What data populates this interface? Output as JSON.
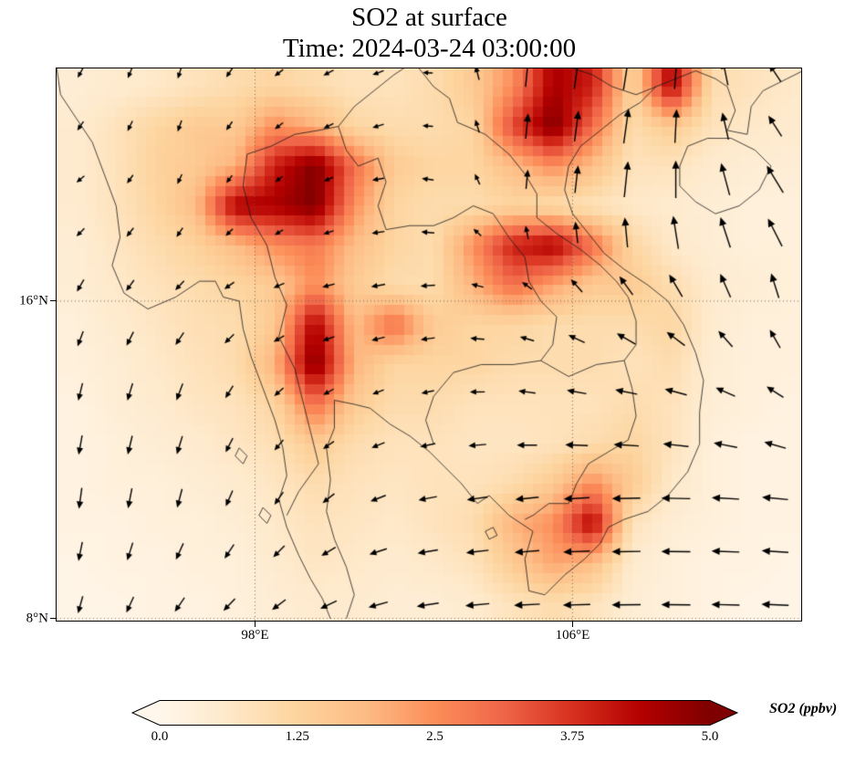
{
  "title": "SO2 at surface",
  "subtitle": "Time: 2024-03-24 03:00:00",
  "axes": {
    "extent": {
      "lon_min": 93.0,
      "lon_max": 111.76,
      "lat_min": 7.95,
      "lat_max": 21.86
    },
    "lat_ticks": [
      {
        "label": "16°N",
        "value": 16
      },
      {
        "label": "8°N",
        "value": 8
      }
    ],
    "lon_ticks": [
      {
        "label": "98°E",
        "value": 98
      },
      {
        "label": "106°E",
        "value": 106
      }
    ]
  },
  "colorbar": {
    "label": "SO2 (ppbv)",
    "min": 0,
    "max": 5,
    "ticks": [
      "0.0",
      "1.25",
      "2.5",
      "3.75",
      "5.0"
    ]
  },
  "chart_data": {
    "type": "heatmap",
    "overlay": "quiver",
    "variable": "SO2 surface concentration",
    "units": "ppbv",
    "time": "2024-03-24 03:00:00",
    "value_range": [
      0,
      5
    ],
    "colormap_stops": [
      [
        0.0,
        "#fff7ec"
      ],
      [
        0.125,
        "#fee8c8"
      ],
      [
        0.25,
        "#fdd49e"
      ],
      [
        0.375,
        "#fdbb84"
      ],
      [
        0.5,
        "#fc8d59"
      ],
      [
        0.625,
        "#ef6548"
      ],
      [
        0.75,
        "#d7301f"
      ],
      [
        0.875,
        "#b30000"
      ],
      [
        1.0,
        "#7f0000"
      ]
    ],
    "grid": {
      "lon_start": 93.5,
      "lon_step": 1.0,
      "lat_start": 21.4,
      "lat_step": -1.0,
      "values": [
        [
          0.4,
          0.5,
          0.6,
          0.8,
          1.0,
          1.2,
          1.0,
          0.8,
          0.8,
          1.0,
          1.5,
          2.5,
          4.5,
          4.0,
          1.2,
          4.5,
          1.0,
          0.8,
          0.6
        ],
        [
          0.5,
          0.8,
          1.2,
          1.5,
          1.5,
          2.5,
          2.0,
          1.2,
          1.0,
          1.0,
          1.2,
          3.5,
          5.0,
          3.0,
          1.0,
          1.5,
          0.8,
          0.6,
          0.5
        ],
        [
          0.5,
          0.8,
          1.3,
          1.5,
          2.0,
          4.0,
          5.0,
          3.0,
          1.5,
          1.2,
          1.2,
          1.8,
          2.5,
          1.8,
          0.8,
          0.8,
          0.5,
          0.4,
          0.4
        ],
        [
          0.5,
          0.8,
          1.2,
          1.8,
          4.5,
          4.5,
          5.0,
          2.5,
          1.2,
          1.0,
          1.0,
          1.2,
          1.0,
          0.8,
          0.6,
          0.5,
          0.4,
          0.3,
          0.3
        ],
        [
          0.4,
          0.7,
          1.0,
          1.3,
          1.8,
          2.5,
          2.8,
          1.8,
          1.2,
          1.0,
          2.5,
          4.0,
          4.5,
          3.0,
          1.2,
          0.6,
          0.4,
          0.3,
          0.3
        ],
        [
          0.4,
          0.6,
          0.8,
          1.0,
          1.2,
          1.5,
          2.5,
          1.5,
          1.0,
          1.0,
          2.0,
          3.0,
          2.2,
          1.5,
          1.5,
          1.0,
          0.5,
          0.4,
          0.3
        ],
        [
          0.3,
          0.5,
          0.7,
          0.9,
          1.0,
          1.5,
          4.5,
          1.8,
          3.0,
          1.5,
          1.2,
          1.2,
          1.0,
          1.0,
          1.0,
          1.2,
          0.5,
          0.3,
          0.3
        ],
        [
          0.3,
          0.4,
          0.6,
          0.8,
          1.0,
          2.0,
          5.0,
          2.0,
          1.2,
          1.2,
          1.2,
          1.0,
          1.0,
          1.0,
          0.8,
          1.0,
          0.4,
          0.3,
          0.3
        ],
        [
          0.2,
          0.4,
          0.5,
          0.7,
          0.8,
          1.2,
          3.0,
          1.5,
          1.0,
          1.0,
          0.8,
          0.8,
          0.8,
          0.8,
          1.0,
          0.8,
          0.4,
          0.3,
          0.2
        ],
        [
          0.2,
          0.3,
          0.4,
          0.5,
          0.7,
          0.9,
          1.5,
          1.0,
          0.8,
          0.8,
          0.7,
          0.7,
          0.8,
          1.0,
          1.2,
          0.8,
          0.3,
          0.2,
          0.2
        ],
        [
          0.2,
          0.3,
          0.3,
          0.4,
          0.5,
          0.7,
          1.0,
          0.8,
          0.7,
          0.8,
          0.8,
          1.0,
          1.5,
          2.5,
          1.5,
          0.6,
          0.3,
          0.2,
          0.2
        ],
        [
          0.2,
          0.2,
          0.3,
          0.3,
          0.4,
          0.6,
          0.8,
          0.7,
          0.6,
          0.8,
          1.0,
          2.0,
          2.5,
          4.5,
          0.8,
          0.4,
          0.3,
          0.2,
          0.2
        ],
        [
          0.1,
          0.2,
          0.2,
          0.3,
          0.3,
          0.5,
          0.7,
          0.6,
          0.5,
          0.6,
          0.8,
          1.5,
          2.2,
          1.8,
          0.5,
          0.3,
          0.2,
          0.2,
          0.1
        ],
        [
          0.1,
          0.1,
          0.2,
          0.2,
          0.3,
          0.4,
          0.5,
          0.5,
          0.4,
          0.4,
          0.5,
          0.8,
          1.0,
          0.8,
          0.4,
          0.3,
          0.2,
          0.1,
          0.1
        ]
      ]
    },
    "wind": {
      "lons": [
        93,
        96,
        99,
        102,
        105,
        108,
        111
      ],
      "lats": [
        21,
        18.5,
        16,
        13.5,
        11,
        8.5
      ],
      "u": [
        [
          -0.5,
          -0.3,
          -0.8,
          -1.0,
          0.3,
          0.5,
          -1.0
        ],
        [
          -0.8,
          -0.4,
          -0.6,
          -1.2,
          0.2,
          0.3,
          -1.5
        ],
        [
          -0.5,
          -0.8,
          -1.0,
          -1.3,
          -1.0,
          -1.5,
          -0.5
        ],
        [
          -0.3,
          -0.5,
          -0.8,
          -1.0,
          -1.5,
          -2.0,
          -1.5
        ],
        [
          -0.2,
          -0.4,
          -0.8,
          -1.5,
          -2.0,
          -2.5,
          -2.2
        ],
        [
          -0.3,
          -0.8,
          -1.2,
          -1.8,
          -2.2,
          -2.5,
          -2.3
        ]
      ],
      "v": [
        [
          -0.8,
          -1.0,
          -0.5,
          -0.3,
          2.5,
          3.0,
          1.5
        ],
        [
          -0.4,
          -0.8,
          -0.4,
          0.0,
          1.5,
          3.5,
          2.5
        ],
        [
          -1.2,
          -0.8,
          -0.3,
          -0.2,
          0.5,
          1.5,
          2.0
        ],
        [
          -1.5,
          -1.5,
          -0.6,
          -0.3,
          0.2,
          0.3,
          0.8
        ],
        [
          -1.8,
          -1.6,
          -1.0,
          -0.3,
          -0.2,
          0.0,
          0.2
        ],
        [
          -1.5,
          -1.2,
          -0.8,
          -0.3,
          -0.1,
          0.0,
          0.1
        ]
      ]
    },
    "map_outlines": [
      [
        [
          93.0,
          21.9
        ],
        [
          93.1,
          21.2
        ],
        [
          93.5,
          20.6
        ],
        [
          93.9,
          20.0
        ],
        [
          94.2,
          19.2
        ],
        [
          94.5,
          18.4
        ],
        [
          94.6,
          17.6
        ],
        [
          94.4,
          16.9
        ],
        [
          94.7,
          16.2
        ],
        [
          95.3,
          15.8
        ],
        [
          96.0,
          16.1
        ],
        [
          96.6,
          16.5
        ],
        [
          97.0,
          16.5
        ],
        [
          97.2,
          16.1
        ],
        [
          97.6,
          16.0
        ],
        [
          97.7,
          15.3
        ],
        [
          97.9,
          14.6
        ],
        [
          98.2,
          13.8
        ],
        [
          98.5,
          13.0
        ],
        [
          98.7,
          12.3
        ],
        [
          98.8,
          11.6
        ],
        [
          98.6,
          11.0
        ],
        [
          98.8,
          10.3
        ],
        [
          99.1,
          9.6
        ],
        [
          99.4,
          9.0
        ],
        [
          99.7,
          8.5
        ],
        [
          99.9,
          8.0
        ]
      ],
      [
        [
          100.3,
          8.0
        ],
        [
          100.5,
          8.6
        ],
        [
          100.3,
          9.3
        ],
        [
          100.0,
          10.0
        ],
        [
          99.8,
          10.7
        ],
        [
          99.9,
          11.5
        ],
        [
          99.8,
          12.3
        ],
        [
          100.0,
          12.8
        ],
        [
          100.0,
          13.5
        ],
        [
          100.5,
          13.4
        ],
        [
          100.9,
          13.3
        ],
        [
          101.4,
          12.9
        ],
        [
          101.9,
          12.6
        ],
        [
          102.4,
          12.2
        ],
        [
          102.9,
          11.7
        ],
        [
          103.2,
          11.4
        ],
        [
          103.6,
          10.9
        ],
        [
          103.9,
          11.1
        ],
        [
          104.4,
          10.6
        ],
        [
          105.0,
          10.2
        ],
        [
          104.8,
          9.5
        ],
        [
          104.9,
          8.7
        ],
        [
          105.3,
          8.6
        ],
        [
          105.8,
          9.1
        ],
        [
          106.3,
          9.5
        ],
        [
          106.7,
          9.9
        ],
        [
          106.9,
          10.3
        ],
        [
          107.3,
          10.5
        ],
        [
          107.9,
          10.7
        ],
        [
          108.4,
          11.1
        ],
        [
          108.9,
          11.7
        ],
        [
          109.2,
          12.4
        ],
        [
          109.2,
          13.2
        ],
        [
          109.3,
          14.0
        ],
        [
          109.1,
          14.7
        ],
        [
          108.8,
          15.4
        ],
        [
          108.4,
          16.0
        ],
        [
          107.9,
          16.4
        ],
        [
          107.3,
          16.8
        ],
        [
          106.8,
          17.2
        ],
        [
          106.4,
          17.7
        ],
        [
          106.0,
          18.2
        ],
        [
          105.8,
          18.8
        ],
        [
          105.9,
          19.4
        ],
        [
          106.2,
          19.9
        ],
        [
          106.7,
          20.3
        ],
        [
          107.2,
          20.7
        ],
        [
          107.7,
          21.0
        ],
        [
          108.1,
          21.4
        ],
        [
          108.6,
          21.6
        ],
        [
          109.1,
          21.8
        ],
        [
          109.6,
          21.6
        ],
        [
          109.9,
          21.4
        ],
        [
          110.1,
          20.8
        ],
        [
          109.9,
          20.3
        ],
        [
          110.4,
          20.2
        ],
        [
          110.5,
          20.9
        ],
        [
          110.8,
          21.3
        ],
        [
          111.4,
          21.6
        ],
        [
          111.8,
          21.8
        ]
      ],
      [
        [
          108.7,
          19.4
        ],
        [
          108.9,
          19.9
        ],
        [
          109.4,
          20.1
        ],
        [
          110.0,
          20.1
        ],
        [
          110.6,
          19.8
        ],
        [
          111.0,
          19.4
        ],
        [
          110.7,
          18.8
        ],
        [
          110.2,
          18.4
        ],
        [
          109.6,
          18.2
        ],
        [
          109.1,
          18.5
        ],
        [
          108.7,
          18.9
        ],
        [
          108.7,
          19.4
        ]
      ],
      [
        [
          97.8,
          19.7
        ],
        [
          97.7,
          18.9
        ],
        [
          97.9,
          18.1
        ],
        [
          98.3,
          17.4
        ],
        [
          98.5,
          16.6
        ],
        [
          98.8,
          15.9
        ],
        [
          98.6,
          15.1
        ],
        [
          99.0,
          14.3
        ],
        [
          99.2,
          13.5
        ],
        [
          99.4,
          12.7
        ],
        [
          99.6,
          11.9
        ],
        [
          99.1,
          11.2
        ],
        [
          98.8,
          10.6
        ]
      ],
      [
        [
          97.8,
          19.7
        ],
        [
          98.4,
          19.9
        ],
        [
          99.0,
          20.2
        ],
        [
          99.6,
          20.3
        ],
        [
          100.1,
          20.4
        ],
        [
          100.3,
          19.8
        ],
        [
          100.6,
          19.4
        ],
        [
          101.1,
          19.6
        ],
        [
          101.3,
          19.0
        ],
        [
          101.1,
          18.4
        ],
        [
          101.3,
          17.8
        ],
        [
          101.9,
          17.9
        ],
        [
          102.5,
          17.9
        ],
        [
          103.0,
          18.1
        ],
        [
          103.5,
          18.4
        ],
        [
          104.0,
          18.2
        ],
        [
          104.4,
          17.6
        ],
        [
          104.8,
          17.1
        ],
        [
          104.9,
          16.5
        ],
        [
          105.2,
          16.0
        ],
        [
          105.6,
          15.6
        ],
        [
          105.5,
          14.9
        ],
        [
          105.2,
          14.5
        ],
        [
          104.5,
          14.4
        ],
        [
          103.7,
          14.4
        ],
        [
          103.0,
          14.2
        ],
        [
          102.5,
          13.6
        ],
        [
          102.3,
          13.0
        ],
        [
          102.5,
          12.4
        ]
      ],
      [
        [
          102.1,
          21.9
        ],
        [
          102.5,
          21.4
        ],
        [
          102.9,
          21.1
        ],
        [
          103.1,
          20.5
        ],
        [
          103.8,
          20.2
        ],
        [
          104.4,
          19.7
        ],
        [
          104.8,
          19.2
        ],
        [
          105.1,
          18.7
        ],
        [
          105.1,
          18.1
        ],
        [
          105.6,
          17.7
        ],
        [
          106.2,
          17.3
        ],
        [
          106.7,
          16.9
        ],
        [
          107.1,
          16.5
        ],
        [
          107.4,
          16.1
        ],
        [
          107.6,
          15.5
        ],
        [
          107.6,
          14.9
        ],
        [
          107.3,
          14.5
        ],
        [
          107.5,
          13.8
        ],
        [
          107.6,
          13.1
        ],
        [
          107.4,
          12.5
        ],
        [
          106.9,
          12.2
        ],
        [
          106.4,
          11.9
        ],
        [
          106.1,
          11.4
        ],
        [
          105.9,
          10.9
        ],
        [
          105.4,
          10.9
        ],
        [
          105.0,
          10.6
        ],
        [
          104.8,
          10.5
        ]
      ],
      [
        [
          105.2,
          14.5
        ],
        [
          105.9,
          14.1
        ],
        [
          106.6,
          14.4
        ],
        [
          107.3,
          14.5
        ]
      ],
      [
        [
          105.9,
          21.9
        ],
        [
          106.5,
          21.7
        ],
        [
          107.0,
          21.4
        ],
        [
          107.6,
          21.2
        ],
        [
          108.1,
          21.4
        ]
      ],
      [
        [
          100.1,
          20.4
        ],
        [
          100.5,
          20.9
        ],
        [
          101.0,
          21.3
        ],
        [
          101.5,
          21.7
        ],
        [
          101.8,
          21.9
        ]
      ],
      [
        [
          97.6,
          12.3
        ],
        [
          97.8,
          12.1
        ],
        [
          97.7,
          11.9
        ],
        [
          97.5,
          12.1
        ],
        [
          97.6,
          12.3
        ]
      ],
      [
        [
          98.2,
          10.8
        ],
        [
          98.4,
          10.6
        ],
        [
          98.3,
          10.4
        ],
        [
          98.1,
          10.6
        ],
        [
          98.2,
          10.8
        ]
      ],
      [
        [
          104.0,
          10.3
        ],
        [
          104.1,
          10.1
        ],
        [
          103.9,
          10.0
        ],
        [
          103.8,
          10.2
        ],
        [
          104.0,
          10.3
        ]
      ]
    ]
  }
}
